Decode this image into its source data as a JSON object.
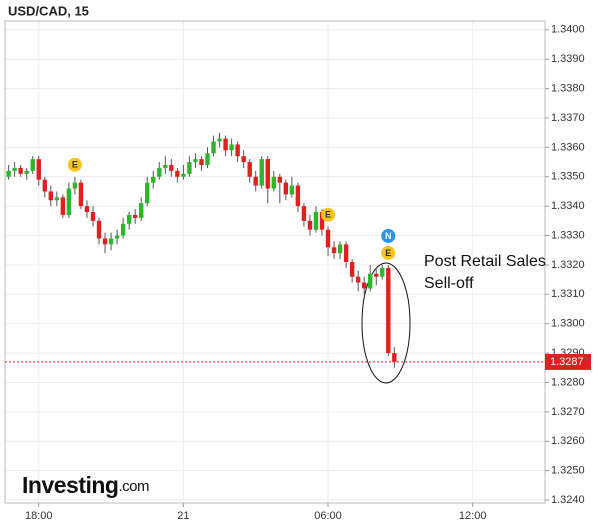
{
  "chart_data": {
    "type": "candlestick",
    "title": "USD/CAD, 15",
    "annotation": [
      "Post Retail Sales",
      "Sell-off"
    ],
    "logo": "Investing",
    "logo_suffix": ".com",
    "up_color": "#2db52d",
    "down_color": "#e02020",
    "grid": true,
    "x": [
      -7.25,
      -7,
      -6.75,
      -6.5,
      -6.25,
      -6,
      -5.75,
      -5.5,
      -5.25,
      -5,
      -4.75,
      -4.5,
      -4.25,
      -4,
      -3.75,
      -3.5,
      -3.25,
      -3,
      -2.75,
      -2.5,
      -2.25,
      -2,
      -1.75,
      -1.5,
      -1.25,
      -1,
      -0.75,
      -0.5,
      -0.25,
      0,
      0.25,
      0.5,
      0.75,
      1,
      1.25,
      1.5,
      1.75,
      2,
      2.25,
      2.5,
      2.75,
      3,
      3.25,
      3.5,
      3.75,
      4,
      4.25,
      4.5,
      4.75,
      5,
      5.25,
      5.5,
      5.75,
      6,
      6.25,
      6.5,
      6.75,
      7,
      7.25,
      7.5,
      7.75,
      8,
      8.25,
      8.5,
      8.75
    ],
    "open": [
      1.335,
      1.3352,
      1.3353,
      1.3351,
      1.3352,
      1.3356,
      1.3349,
      1.3345,
      1.3342,
      1.3343,
      1.3337,
      1.3346,
      1.3348,
      1.334,
      1.3338,
      1.3335,
      1.3329,
      1.3327,
      1.3329,
      1.333,
      1.3334,
      1.3337,
      1.3336,
      1.3341,
      1.3348,
      1.335,
      1.3353,
      1.3354,
      1.3352,
      1.335,
      1.3351,
      1.3355,
      1.3356,
      1.3354,
      1.3358,
      1.3362,
      1.3363,
      1.3359,
      1.3361,
      1.3357,
      1.3355,
      1.335,
      1.3347,
      1.3356,
      1.3346,
      1.335,
      1.3348,
      1.3344,
      1.3347,
      1.334,
      1.3335,
      1.3332,
      1.3338,
      1.3332,
      1.3326,
      1.3324,
      1.3327,
      1.3321,
      1.3316,
      1.3314,
      1.3312,
      1.3317,
      1.3316,
      1.3319,
      1.329
    ],
    "high": [
      1.3354,
      1.3355,
      1.3354,
      1.3353,
      1.3357,
      1.3357,
      1.335,
      1.3347,
      1.3345,
      1.3344,
      1.3348,
      1.335,
      1.3349,
      1.3342,
      1.334,
      1.3336,
      1.3331,
      1.3331,
      1.3332,
      1.3336,
      1.3338,
      1.3339,
      1.3343,
      1.335,
      1.3352,
      1.3355,
      1.3357,
      1.3356,
      1.3353,
      1.3354,
      1.3357,
      1.3358,
      1.3357,
      1.336,
      1.3364,
      1.3365,
      1.3364,
      1.3363,
      1.3362,
      1.3359,
      1.3356,
      1.3352,
      1.3357,
      1.3357,
      1.3352,
      1.3351,
      1.3349,
      1.335,
      1.3348,
      1.3341,
      1.3337,
      1.334,
      1.3339,
      1.3333,
      1.3328,
      1.3328,
      1.3328,
      1.3322,
      1.3318,
      1.3316,
      1.332,
      1.3319,
      1.332,
      1.332,
      1.3292
    ],
    "low": [
      1.3349,
      1.335,
      1.335,
      1.3349,
      1.3351,
      1.3347,
      1.3343,
      1.334,
      1.334,
      1.3336,
      1.3336,
      1.3344,
      1.3339,
      1.3336,
      1.3333,
      1.3327,
      1.3324,
      1.3325,
      1.3327,
      1.3329,
      1.3332,
      1.3334,
      1.3335,
      1.334,
      1.3346,
      1.3349,
      1.3351,
      1.335,
      1.3348,
      1.3349,
      1.335,
      1.3353,
      1.3352,
      1.3353,
      1.3357,
      1.336,
      1.3357,
      1.3357,
      1.3355,
      1.3353,
      1.3348,
      1.3345,
      1.3346,
      1.3341,
      1.3345,
      1.3341,
      1.3342,
      1.3343,
      1.3338,
      1.3333,
      1.333,
      1.3331,
      1.333,
      1.3323,
      1.3322,
      1.3322,
      1.3319,
      1.3314,
      1.3311,
      1.331,
      1.3311,
      1.3313,
      1.3315,
      1.3289,
      1.3285
    ],
    "close": [
      1.3352,
      1.3353,
      1.3351,
      1.3352,
      1.3356,
      1.3349,
      1.3345,
      1.3342,
      1.3343,
      1.3337,
      1.3346,
      1.3348,
      1.334,
      1.3338,
      1.3335,
      1.3329,
      1.3327,
      1.3329,
      1.333,
      1.3334,
      1.3337,
      1.3336,
      1.3341,
      1.3348,
      1.335,
      1.3353,
      1.3354,
      1.3352,
      1.335,
      1.3351,
      1.3355,
      1.3356,
      1.3354,
      1.3358,
      1.3362,
      1.3363,
      1.3359,
      1.3361,
      1.3357,
      1.3355,
      1.335,
      1.3347,
      1.3356,
      1.3346,
      1.335,
      1.3348,
      1.3344,
      1.3347,
      1.334,
      1.3335,
      1.3332,
      1.3338,
      1.3332,
      1.3326,
      1.3324,
      1.3327,
      1.3321,
      1.3316,
      1.3314,
      1.3312,
      1.3317,
      1.3316,
      1.3319,
      1.329,
      1.3287
    ],
    "events": [
      {
        "label": "E",
        "x": -4.5,
        "color": "#f5c518"
      },
      {
        "label": "E",
        "x": 6,
        "color": "#f5c518"
      },
      {
        "label": "E",
        "x": 8.5,
        "color": "#f5c518"
      },
      {
        "label": "N",
        "x": 8.5,
        "color": "#2196f3"
      }
    ],
    "xlim": [
      -7.4,
      15.0
    ],
    "xticks": [
      {
        "value": -6,
        "label": "18:00"
      },
      {
        "value": 0,
        "label": "21"
      },
      {
        "value": 6,
        "label": "06:00"
      },
      {
        "value": 12,
        "label": "12:00"
      }
    ],
    "ylim": [
      1.3239,
      1.3403
    ],
    "yticks": [
      {
        "value": 1.324,
        "label": "1.3240"
      },
      {
        "value": 1.325,
        "label": "1.3250"
      },
      {
        "value": 1.326,
        "label": "1.3260"
      },
      {
        "value": 1.327,
        "label": "1.3270"
      },
      {
        "value": 1.328,
        "label": "1.3280"
      },
      {
        "value": 1.329,
        "label": "1.3290"
      },
      {
        "value": 1.33,
        "label": "1.3300"
      },
      {
        "value": 1.331,
        "label": "1.3310"
      },
      {
        "value": 1.332,
        "label": "1.3320"
      },
      {
        "value": 1.333,
        "label": "1.3330"
      },
      {
        "value": 1.334,
        "label": "1.3340"
      },
      {
        "value": 1.335,
        "label": "1.3350"
      },
      {
        "value": 1.336,
        "label": "1.3360"
      },
      {
        "value": 1.337,
        "label": "1.3370"
      },
      {
        "value": 1.338,
        "label": "1.3380"
      },
      {
        "value": 1.339,
        "label": "1.3390"
      },
      {
        "value": 1.34,
        "label": "1.3400"
      }
    ]
  }
}
